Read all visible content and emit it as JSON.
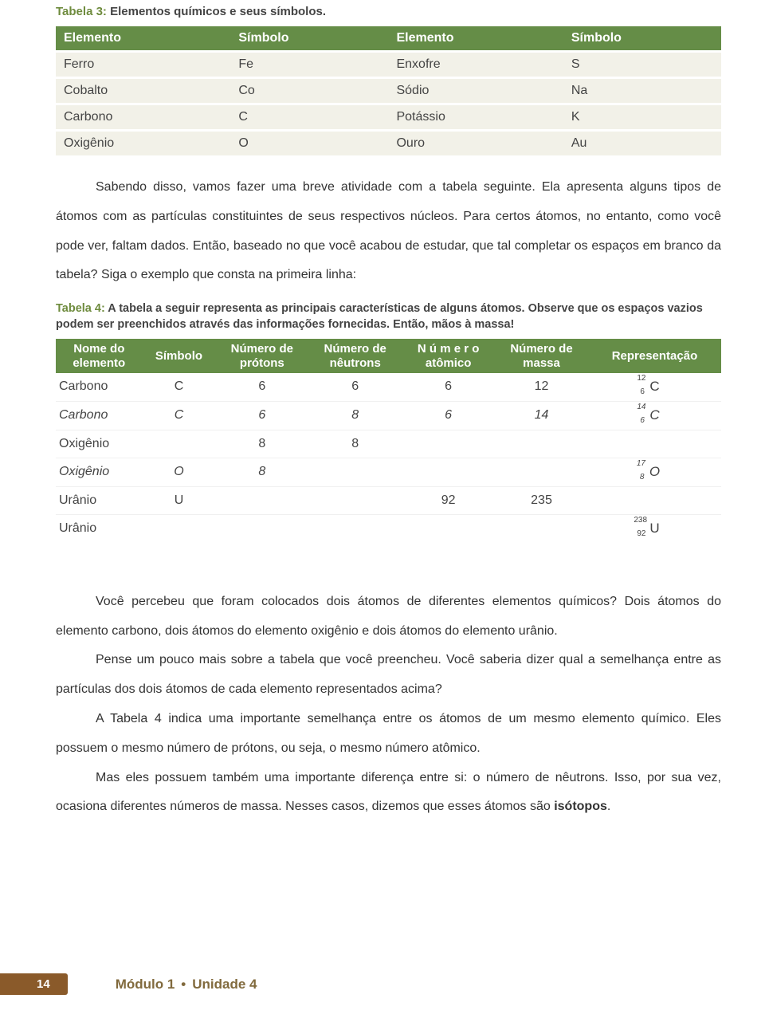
{
  "table3": {
    "caption_prefix": "Tabela 3:",
    "caption_rest": " Elementos químicos e seus símbolos.",
    "headers": [
      "Elemento",
      "Símbolo",
      "Elemento",
      "Símbolo"
    ],
    "rows": [
      [
        "Ferro",
        "Fe",
        "Enxofre",
        "S"
      ],
      [
        "Cobalto",
        "Co",
        "Sódio",
        "Na"
      ],
      [
        "Carbono",
        "C",
        "Potássio",
        "K"
      ],
      [
        "Oxigênio",
        "O",
        "Ouro",
        "Au"
      ]
    ],
    "header_bg": "#658d47",
    "row_bg": "#f2f1e8"
  },
  "para1": "Sabendo disso, vamos fazer uma breve atividade com a tabela seguinte. Ela apresenta alguns tipos de átomos com as partículas constituintes de seus respectivos núcleos. Para certos átomos, no entanto, como você pode ver, faltam dados. Então, baseado no que você acabou de estudar, que tal completar os espaços em branco da tabela? Siga o exemplo que consta na primeira linha:",
  "table4": {
    "caption_prefix": "Tabela 4:",
    "caption_rest": " A tabela  a seguir representa as principais características de alguns átomos. Observe que os espaços vazios podem ser preenchidos através das informações fornecidas. Então, mãos à massa!",
    "headers": [
      {
        "l1": "Nome  do",
        "l2": "elemento"
      },
      {
        "l1": "Símbolo",
        "l2": ""
      },
      {
        "l1": "Número  de",
        "l2": "prótons"
      },
      {
        "l1": "Número de",
        "l2": "nêutrons"
      },
      {
        "l1": "N ú m e r o",
        "l2": "atômico"
      },
      {
        "l1": "Número  de",
        "l2": "massa"
      },
      {
        "l1": "Representação",
        "l2": ""
      }
    ],
    "rows": [
      {
        "name": "Carbono",
        "sym": "C",
        "p": "6",
        "n": "6",
        "a": "6",
        "m": "12",
        "rep": {
          "mass": "12",
          "atn": "6",
          "sym": "C",
          "wide": false
        },
        "italic": false
      },
      {
        "name": "Carbono",
        "sym": "C",
        "p": "6",
        "n": "8",
        "a": "6",
        "m": "14",
        "rep": {
          "mass": "14",
          "atn": "6",
          "sym": "C",
          "wide": false
        },
        "italic": true
      },
      {
        "name": "Oxigênio",
        "sym": "",
        "p": "8",
        "n": "8",
        "a": "",
        "m": "",
        "rep": null,
        "italic": false
      },
      {
        "name": "Oxigênio",
        "sym": "O",
        "p": "8",
        "n": "",
        "a": "",
        "m": "",
        "rep": {
          "mass": "17",
          "atn": "8",
          "sym": "O",
          "wide": false
        },
        "italic": true
      },
      {
        "name": "Urânio",
        "sym": "U",
        "p": "",
        "n": "",
        "a": "92",
        "m": "235",
        "rep": null,
        "italic": false
      },
      {
        "name": "Urânio",
        "sym": "",
        "p": "",
        "n": "",
        "a": "",
        "m": "",
        "rep": {
          "mass": "238",
          "atn": "92",
          "sym": "U",
          "wide": true
        },
        "italic": false
      }
    ],
    "col_widths_pct": [
      13,
      11,
      14,
      14,
      14,
      14,
      20
    ]
  },
  "para2": "Você percebeu que foram colocados dois átomos de diferentes elementos químicos? Dois átomos do elemento carbono, dois átomos do elemento oxigênio e dois átomos do elemento urânio.",
  "para3": "Pense um pouco mais sobre a tabela que você preencheu. Você saberia dizer qual a semelhança entre as partículas dos dois átomos de cada elemento representados acima?",
  "para4": "A Tabela 4 indica uma importante semelhança entre os átomos de um mesmo elemento químico. Eles possuem o mesmo número de prótons, ou seja, o mesmo número atômico.",
  "para5_a": "Mas eles possuem também uma importante diferença entre si: o número de nêutrons. Isso, por sua vez, ocasiona diferentes números de massa. Nesses casos, dizemos que esses átomos são ",
  "para5_bold": "isótopos",
  "para5_b": ".",
  "footer": {
    "page": "14",
    "module": "Módulo 1",
    "unit": "Unidade 4",
    "sep": "•"
  }
}
